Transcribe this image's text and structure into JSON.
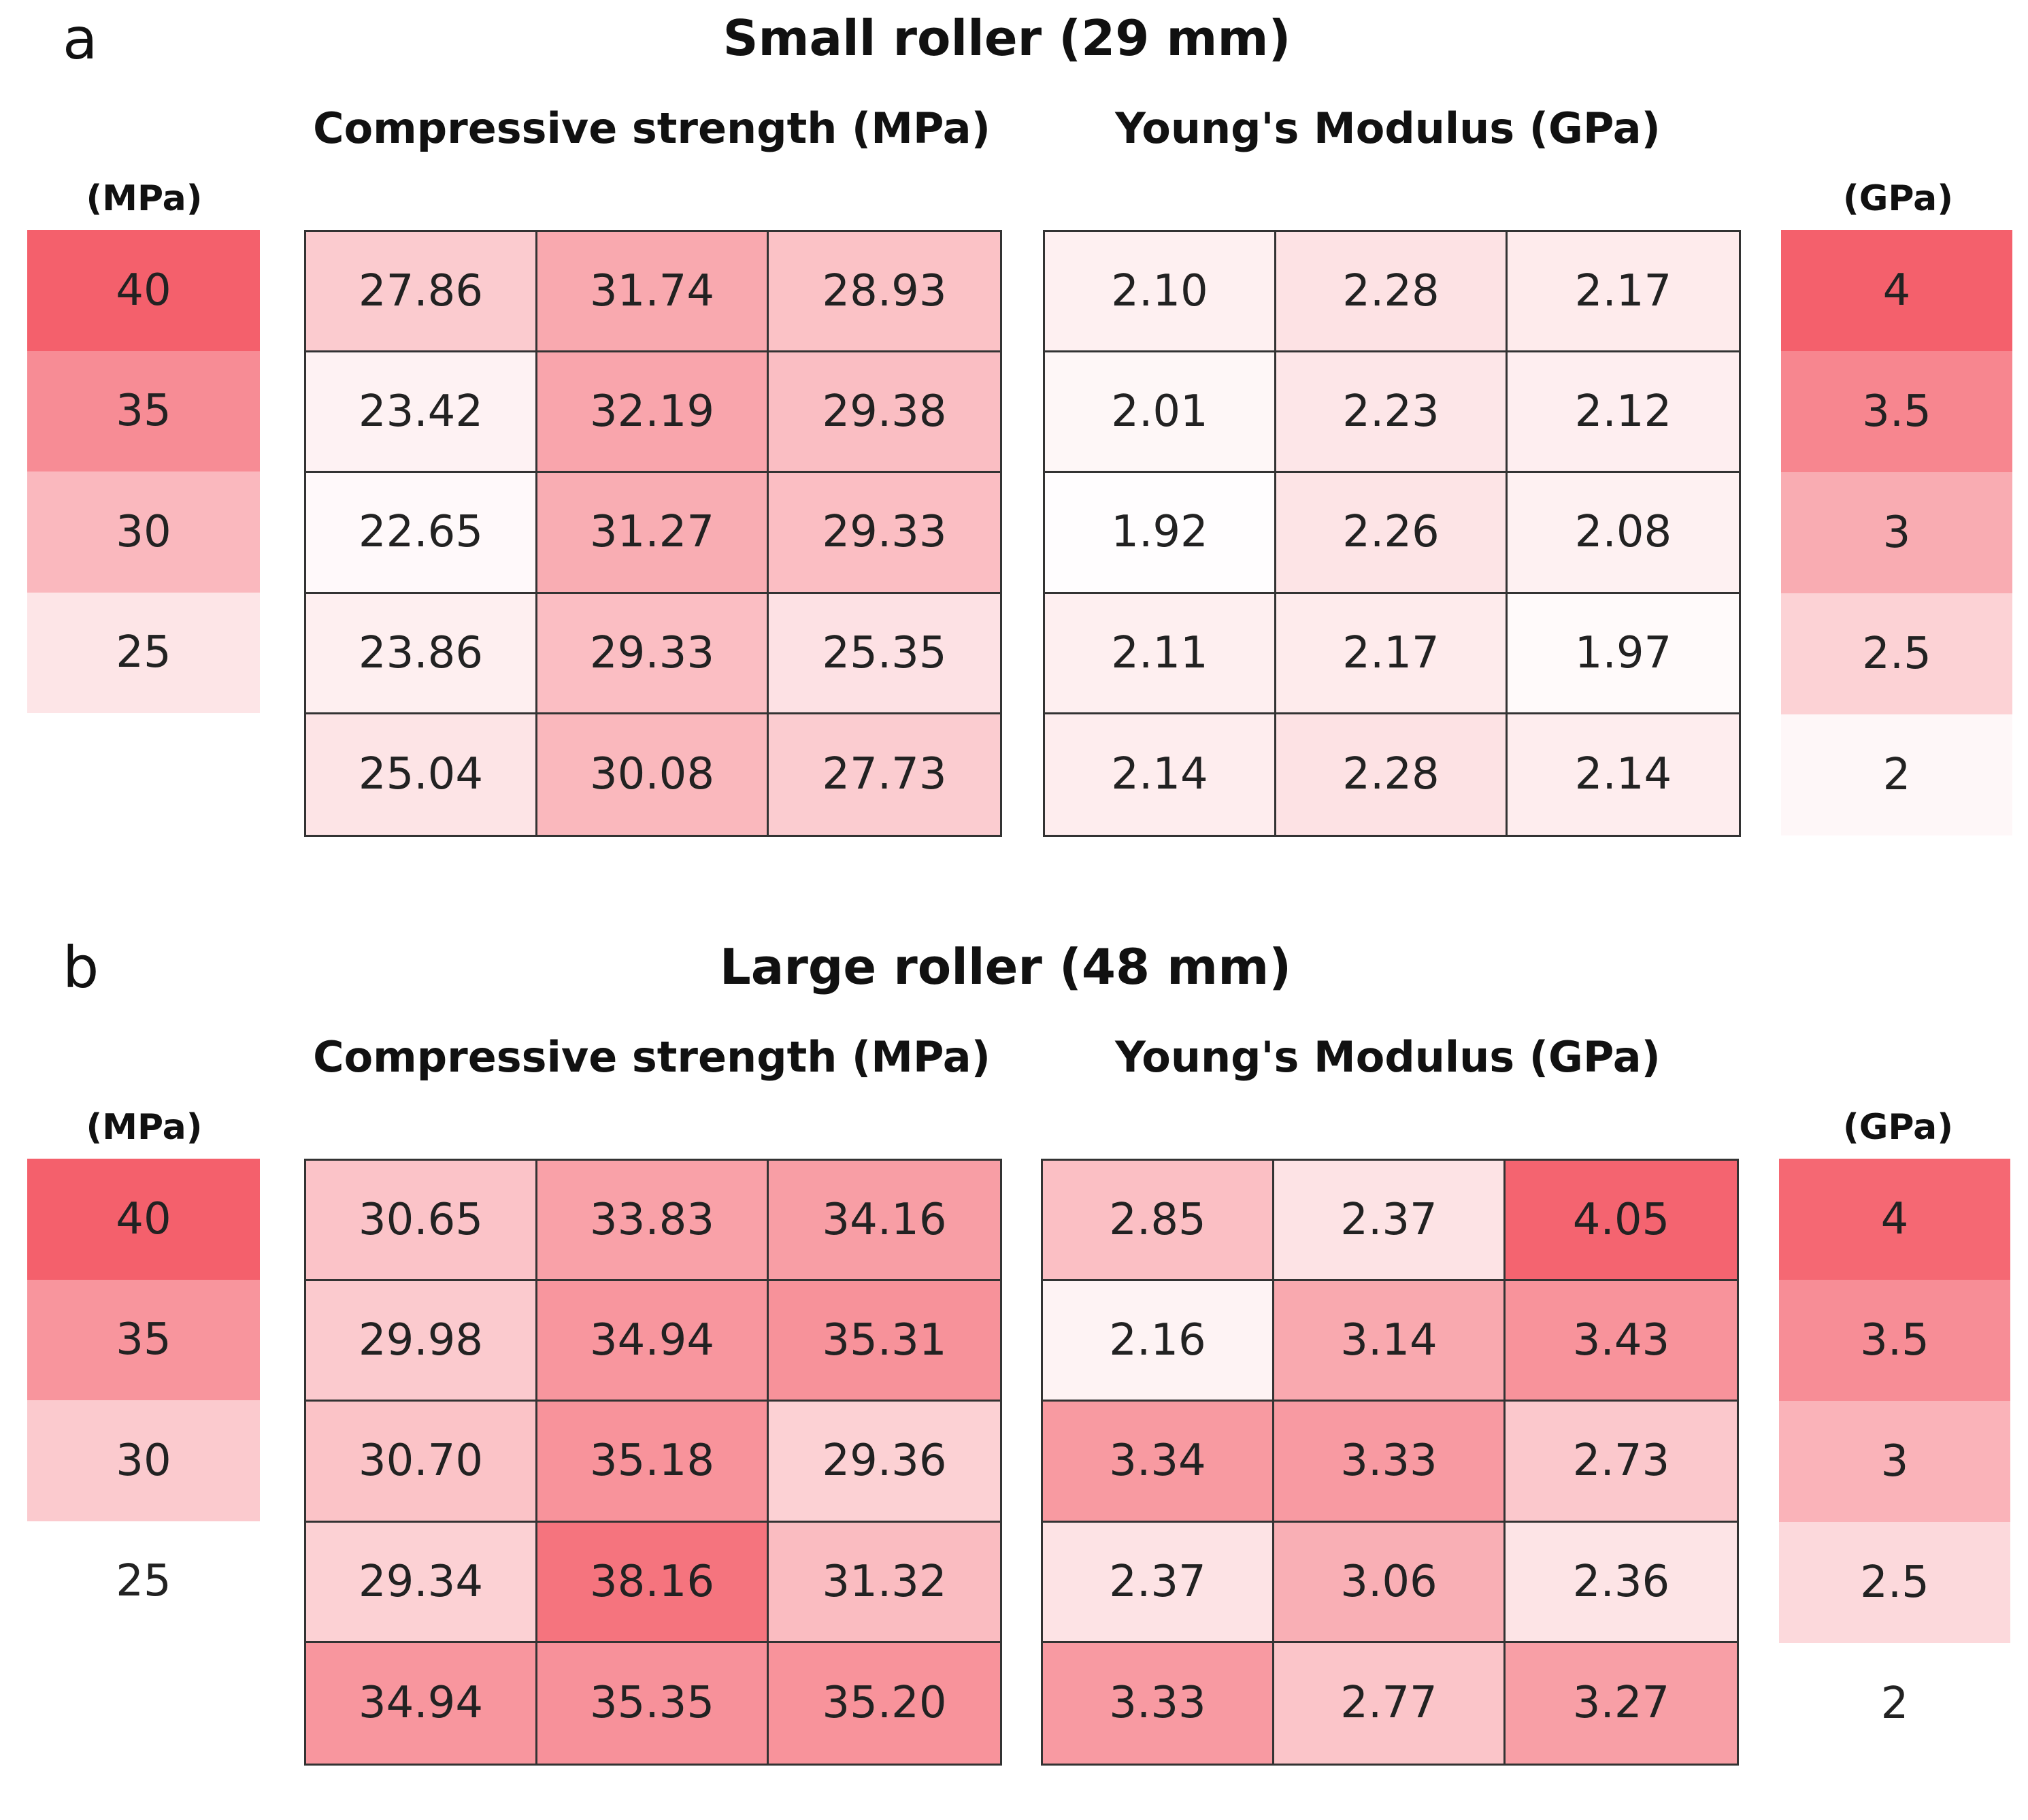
{
  "chart_data": [
    {
      "type": "heatmap",
      "panel_label": "a",
      "title": "Small roller (29 mm)",
      "colormap": {
        "min_color": "#ffffff",
        "max_color": "#f4606c"
      },
      "heatmaps": [
        {
          "title": "Compressive strength (MPa)",
          "unit": "(MPa)",
          "range": [
            22,
            40
          ],
          "values": [
            [
              27.86,
              31.74,
              28.93
            ],
            [
              23.42,
              32.19,
              29.38
            ],
            [
              22.65,
              31.27,
              29.33
            ],
            [
              23.86,
              29.33,
              25.35
            ],
            [
              25.04,
              30.08,
              27.73
            ]
          ],
          "labels": [
            [
              "27.86",
              "31.74",
              "28.93"
            ],
            [
              "23.42",
              "32.19",
              "29.38"
            ],
            [
              "22.65",
              "31.27",
              "29.33"
            ],
            [
              "23.86",
              "29.33",
              "25.35"
            ],
            [
              "25.04",
              "30.08",
              "27.73"
            ]
          ]
        },
        {
          "title": "Young's Modulus (GPa)",
          "unit": "(GPa)",
          "range": [
            1.9,
            4
          ],
          "values": [
            [
              2.1,
              2.28,
              2.17
            ],
            [
              2.01,
              2.23,
              2.12
            ],
            [
              1.92,
              2.26,
              2.08
            ],
            [
              2.11,
              2.17,
              1.97
            ],
            [
              2.14,
              2.28,
              2.14
            ]
          ],
          "labels": [
            [
              "2.10",
              "2.28",
              "2.17"
            ],
            [
              "2.01",
              "2.23",
              "2.12"
            ],
            [
              "1.92",
              "2.26",
              "2.08"
            ],
            [
              "2.11",
              "2.17",
              "1.97"
            ],
            [
              "2.14",
              "2.28",
              "2.14"
            ]
          ]
        }
      ],
      "legend_left": {
        "unit": "(MPa)",
        "range": [
          22,
          40
        ],
        "ticks": [
          "40",
          "35",
          "30",
          "25"
        ],
        "values": [
          40,
          35,
          30,
          25
        ]
      },
      "legend_right": {
        "unit": "(GPa)",
        "range": [
          1.9,
          4
        ],
        "ticks": [
          "4",
          "3.5",
          "3",
          "2.5",
          "2"
        ],
        "values": [
          4,
          3.5,
          3,
          2.5,
          2
        ]
      }
    },
    {
      "type": "heatmap",
      "panel_label": "b",
      "title": "Large roller (48 mm)",
      "colormap": {
        "min_color": "#ffffff",
        "max_color": "#f4606c"
      },
      "heatmaps": [
        {
          "title": "Compressive strength (MPa)",
          "unit": "(MPa)",
          "range": [
            25,
            40
          ],
          "values": [
            [
              30.65,
              33.83,
              34.16
            ],
            [
              29.98,
              34.94,
              35.31
            ],
            [
              30.7,
              35.18,
              29.36
            ],
            [
              29.34,
              38.16,
              31.32
            ],
            [
              34.94,
              35.35,
              35.2
            ]
          ],
          "labels": [
            [
              "30.65",
              "33.83",
              "34.16"
            ],
            [
              "29.98",
              "34.94",
              "35.31"
            ],
            [
              "30.70",
              "35.18",
              "29.36"
            ],
            [
              "29.34",
              "38.16",
              "31.32"
            ],
            [
              "34.94",
              "35.35",
              "35.20"
            ]
          ]
        },
        {
          "title": "Young's Modulus (GPa)",
          "unit": "(GPa)",
          "range": [
            2,
            4.1
          ],
          "values": [
            [
              2.85,
              2.37,
              4.05
            ],
            [
              2.16,
              3.14,
              3.43
            ],
            [
              3.34,
              3.33,
              2.73
            ],
            [
              2.37,
              3.06,
              2.36
            ],
            [
              3.33,
              2.77,
              3.27
            ]
          ],
          "labels": [
            [
              "2.85",
              "2.37",
              "4.05"
            ],
            [
              "2.16",
              "3.14",
              "3.43"
            ],
            [
              "3.34",
              "3.33",
              "2.73"
            ],
            [
              "2.37",
              "3.06",
              "2.36"
            ],
            [
              "3.33",
              "2.77",
              "3.27"
            ]
          ]
        }
      ],
      "legend_left": {
        "unit": "(MPa)",
        "range": [
          25,
          40
        ],
        "ticks": [
          "40",
          "35",
          "30",
          "25"
        ],
        "values": [
          40,
          35,
          30,
          25
        ]
      },
      "legend_right": {
        "unit": "(GPa)",
        "range": [
          2,
          4.1
        ],
        "ticks": [
          "4",
          "3.5",
          "3",
          "2.5",
          "2"
        ],
        "values": [
          4,
          3.5,
          3,
          2.5,
          2
        ]
      }
    }
  ]
}
